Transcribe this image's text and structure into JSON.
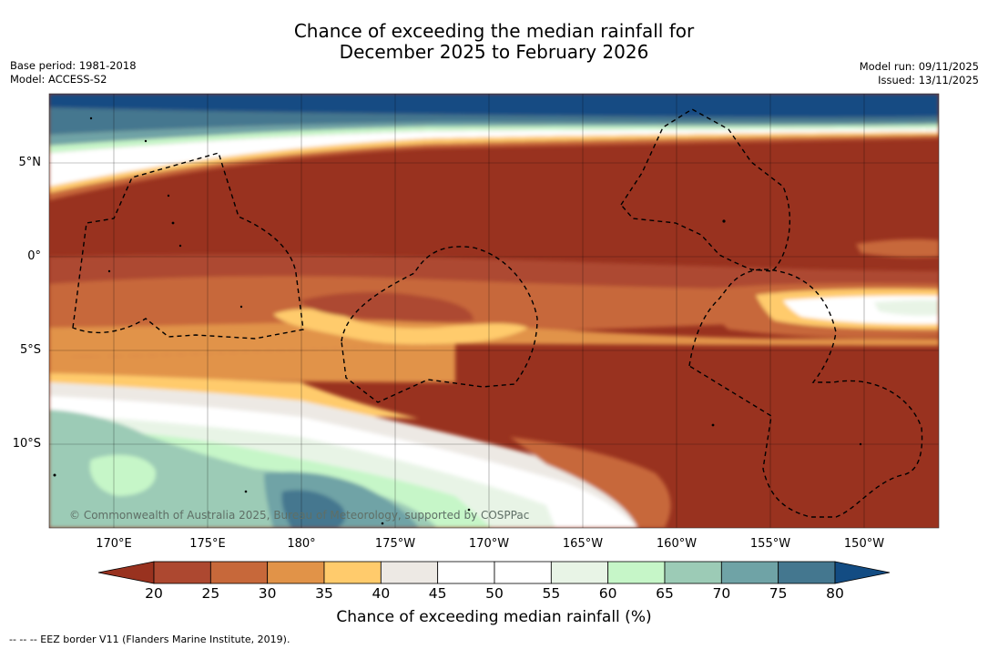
{
  "title": {
    "line1": "Chance of exceeding the median rainfall for",
    "line2": "December 2025 to February 2026"
  },
  "meta_left": {
    "base_period": "Base period: 1981-2018",
    "model": "Model: ACCESS-S2"
  },
  "meta_right": {
    "model_run": "Model run: 09/11/2025",
    "issued": "Issued: 13/11/2025"
  },
  "map": {
    "lon_labels": [
      "170°E",
      "175°E",
      "180°",
      "175°W",
      "170°W",
      "165°W",
      "160°W",
      "155°W",
      "150°W"
    ],
    "lat_labels": [
      "5°N",
      "0°",
      "5°S",
      "10°S"
    ],
    "copyright": "© Commonwealth of Australia 2025, Bureau of Meteorology, supported by COSPPac"
  },
  "colorbar": {
    "ticks": [
      "20",
      "25",
      "30",
      "35",
      "40",
      "45",
      "50",
      "55",
      "60",
      "65",
      "70",
      "75",
      "80"
    ],
    "colors": [
      "#ad4830",
      "#c7683a",
      "#e19348",
      "#ffcb6c",
      "#ede9e4",
      "#ffffff",
      "#ffffff",
      "#e8f4e6",
      "#c6f6c8",
      "#9ccbb6",
      "#6fa3a6",
      "#44778f"
    ],
    "low_extend_color": "#99321f",
    "high_extend_color": "#134c83",
    "label": "Chance of exceeding median rainfall (%)"
  },
  "footer": "--  --  -- EEZ border V11 (Flanders Marine Institute, 2019)."
}
